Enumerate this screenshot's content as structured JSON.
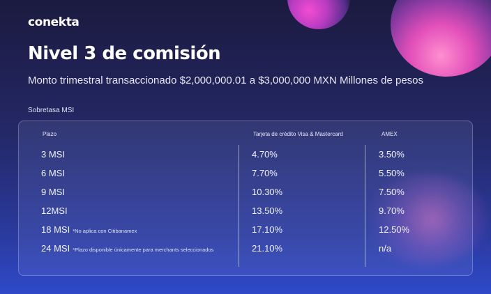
{
  "brand": {
    "logo": "conekta"
  },
  "header": {
    "title": "Nivel 3 de comisión",
    "subtitle": "Monto trimestral transaccionado $2,000,000.01 a $3,000,000 MXN Millones de pesos"
  },
  "section": {
    "label": "Sobretasa MSI"
  },
  "table": {
    "columns": [
      "Plazo",
      "Tarjeta de crédito Visa & Mastercard",
      "AMEX"
    ],
    "rows": [
      {
        "plazo": "3 MSI",
        "note": "",
        "visa_mc": "4.70%",
        "amex": "3.50%"
      },
      {
        "plazo": "6 MSI",
        "note": "",
        "visa_mc": "7.70%",
        "amex": "5.50%"
      },
      {
        "plazo": "9 MSI",
        "note": "",
        "visa_mc": "10.30%",
        "amex": "7.50%"
      },
      {
        "plazo": "12MSI",
        "note": "",
        "visa_mc": "13.50%",
        "amex": "9.70%"
      },
      {
        "plazo": "18 MSI",
        "note": "*No aplica con Citibanamex",
        "visa_mc": "17.10%",
        "amex": "12.50%"
      },
      {
        "plazo": "24 MSI",
        "note": "*Plazo disponible únicamente para merchants seleccionados",
        "visa_mc": "21.10%",
        "amex": "n/a"
      }
    ]
  },
  "colors": {
    "bg_top": "#1b1a3f",
    "bg_bottom": "#2f49c9",
    "accent_pink": "#ff4fd8",
    "text": "#ffffff"
  }
}
